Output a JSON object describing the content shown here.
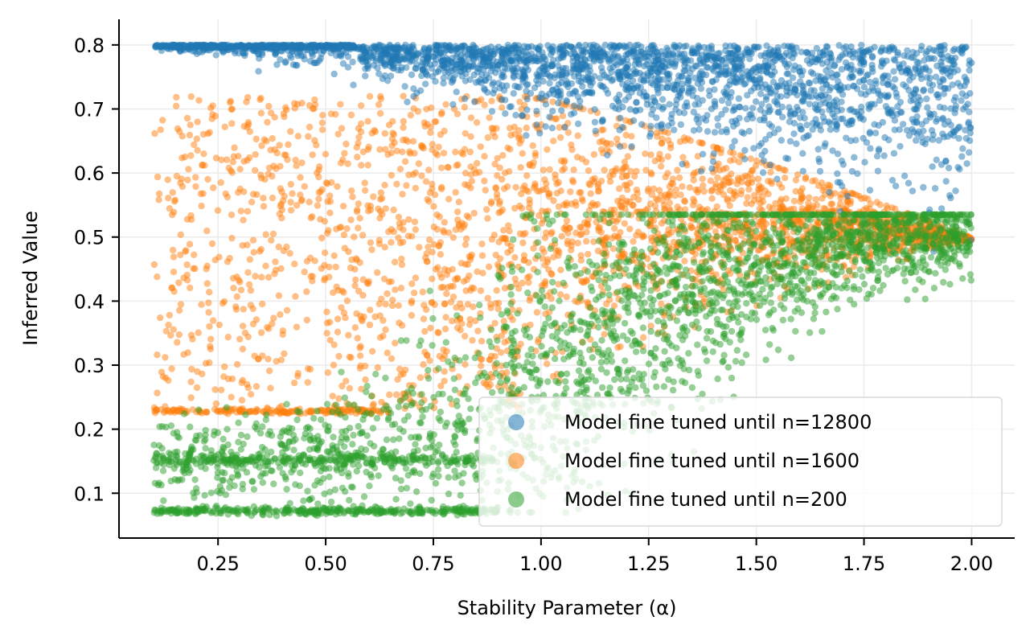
{
  "chart_data": {
    "type": "scatter",
    "title": "",
    "xlabel": "Stability Parameter (α)",
    "ylabel": "Inferred Value",
    "xlim": [
      0.02,
      2.1
    ],
    "ylim": [
      0.03,
      0.84
    ],
    "x_ticks": [
      0.25,
      0.5,
      0.75,
      1.0,
      1.25,
      1.5,
      1.75,
      2.0
    ],
    "x_tick_labels": [
      "0.25",
      "0.50",
      "0.75",
      "1.00",
      "1.25",
      "1.50",
      "1.75",
      "2.00"
    ],
    "y_ticks": [
      0.1,
      0.2,
      0.3,
      0.4,
      0.5,
      0.6,
      0.7,
      0.8
    ],
    "y_tick_labels": [
      "0.1",
      "0.2",
      "0.3",
      "0.4",
      "0.5",
      "0.6",
      "0.7",
      "0.8"
    ],
    "grid": true,
    "legend_position": "bottom-right",
    "x_range_of_points": [
      0.1,
      2.0
    ],
    "series": [
      {
        "name": "Model fine tuned until n=12800",
        "color": "#1f77b4",
        "summary_points": [
          {
            "x": 0.1,
            "y": 0.8
          },
          {
            "x": 0.25,
            "y": 0.8
          },
          {
            "x": 0.5,
            "y": 0.795
          },
          {
            "x": 0.75,
            "y": 0.785
          },
          {
            "x": 1.0,
            "y": 0.765
          },
          {
            "x": 1.25,
            "y": 0.73
          },
          {
            "x": 1.5,
            "y": 0.68
          },
          {
            "x": 1.75,
            "y": 0.63
          },
          {
            "x": 2.0,
            "y": 0.6
          }
        ]
      },
      {
        "name": "Model fine tuned until n=1600",
        "color": "#ff7f0e",
        "summary_points": [
          {
            "x": 0.1,
            "y": 0.228
          },
          {
            "x": 0.25,
            "y": 0.47
          },
          {
            "x": 0.5,
            "y": 0.5
          },
          {
            "x": 0.75,
            "y": 0.56
          },
          {
            "x": 1.0,
            "y": 0.64
          },
          {
            "x": 1.25,
            "y": 0.61
          },
          {
            "x": 1.5,
            "y": 0.57
          },
          {
            "x": 1.75,
            "y": 0.53
          },
          {
            "x": 2.0,
            "y": 0.5
          }
        ]
      },
      {
        "name": "Model fine tuned until n=200",
        "color": "#2ca02c",
        "summary_points": [
          {
            "x": 0.1,
            "y": 0.15
          },
          {
            "x": 0.25,
            "y": 0.15
          },
          {
            "x": 0.5,
            "y": 0.17
          },
          {
            "x": 0.75,
            "y": 0.21
          },
          {
            "x": 1.0,
            "y": 0.29
          },
          {
            "x": 1.25,
            "y": 0.4
          },
          {
            "x": 1.5,
            "y": 0.47
          },
          {
            "x": 1.75,
            "y": 0.5
          },
          {
            "x": 2.0,
            "y": 0.51
          }
        ]
      }
    ]
  }
}
